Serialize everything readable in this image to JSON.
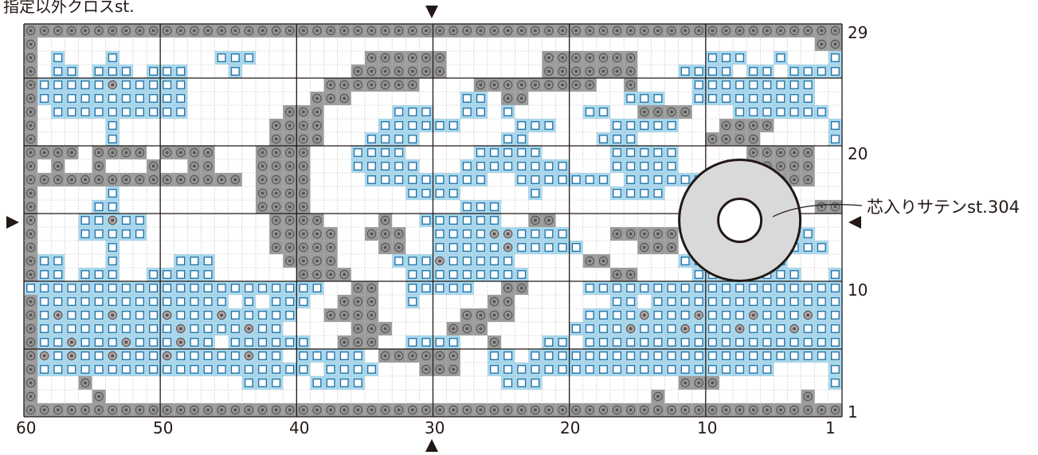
{
  "title": "指定以外クロスst.",
  "callout": "芯入りサテンst.304",
  "x_ticks": [
    "60",
    "50",
    "40",
    "30",
    "20",
    "10",
    "1"
  ],
  "y_ticks": [
    "29",
    "20",
    "10",
    "1"
  ],
  "colors": {
    "cross_stitch": "#a8d8ee",
    "cross_mark": "#1d6fa5",
    "back_fill": "#9a9a9a",
    "ring_mark": "#555555",
    "satin_fill": "#d9d9d9",
    "grid_line": "#bdbdbd",
    "major_line": "#231815"
  },
  "chart_data": {
    "type": "stitch-pattern",
    "columns": 60,
    "rows": 29,
    "x_range": [
      60,
      1
    ],
    "y_range": [
      1,
      29
    ],
    "marker_columns": [
      30
    ],
    "marker_rows": [
      15
    ],
    "satin_motif": {
      "center_col": 8,
      "center_row": 15,
      "label": "芯入りサテンst.304"
    },
    "legend": {
      "#": "dark grey cell with ring symbol",
      "B": "light blue cell with square symbol",
      "C": "light blue cell with ring symbol",
      ".": "empty cell"
    },
    "pattern_top_to_bottom": [
      "###############################################################",
      "#.........................................................##...",
      "#.B...B.......BBB........######.......#######.....BBB..B...BBB.#",
      "#.BB.BBB.BBB...B........#######.......#######...BBBB.BB.BBBB..##",
      "#BBBBBCBBBBB..........#######....#########..#....BBBBBBBBB...######",
      "#BBBBBBBBBBB.........###........BB.##.......BBB..BBBBBBBBB..##.##",
      "#.BBBBBBBBBB.......###.....BBB..BB.B.....BB..####...BBBBBBB...#..BBB#",
      "#.....B...........####....BBBBBB....BBB....BBBBB...####....B.......##.BBBBB#",
      "#.....B...........####...BBBB......BB.....BBB.....####.....B.......##.BB..#",
      "####.####.####...####...BBBB.....BBBBB.....BBBBB.....#####...######...BBBB..#",
      "#.#..#...#..##...####...BBBBB...BBBBBBBB...BBBBB.....#####...#.#.##..BBBB..#",
      "################.####....BBBBBBBBB..BBBBBBB.BBBBBB...#####....#####..BB.BBB#",
      "#.....B..........####.......BBBB.....B.....BBBB.....####.......B...........BBB#",
      "#....BB..........####...........BBB.......................####........B.......#",
      "#...BBCBB.........####....#..BBBBBB..##...........BBBB.......BB....#",
      "#...BBBBB.........#####..###..BBBBCCBBBB...#####.......BBB.......##......BB#",
      "#.....B...........#####...##..BBBBBCBBBBB....###.....B..BBB.......#......BB#",
      "#BB...B....BBB.....####....BBBCBBBBB.....##.....BBB....B...........B.BB#",
      "#BB.BBB..BBBBB......####....BBBBBBBBB......##....BBBBBBBB..BB..........##BB#",
      "BBBBBBBBBBBBBBBBBBBBBB..##..BBBBB..##....BBBBBBBBBBBBBBBBBBBBBBBBB.....###.#",
      "#BBBBBBBBBBBBBB.B.BBB..###..B.....##.......BB.BBBBBBBBBBBBBBBBB...##..####",
      "#BCBBBCBBBCBBBCBBBBB..####......####.....BBBBCBBBCBBBCBBBCBBB..#.BB.##",
      "#BBBBBBBBBBCBBBBCBB.....###....###......BBBBCBBBCBBBCBBBCBBBBB.#.BBB.##",
      "#BBCBBBCBBBCBB.BBBBBB..###..BBBB..#...BB.BBBBBBBBBBBBBBBBBBBBB..#BB..#",
      "#CBCBBCBBBCBBBBBCBB.BBBBB.######..BB.BBBBBBBBBBBBBBBBBBBBBBBBB.##BB#",
      "#BBBBBBBBBBBBBBBBBBBB.BBBB...###..BBBBBBBBBBBBBBBBBBBBB....BBBB#.#",
      "#...#...........BBB..BBBB..........BBB..........###........BBB.##..#",
      "#....#........................................#..........#.......",
      "#############################################################...."
    ]
  }
}
